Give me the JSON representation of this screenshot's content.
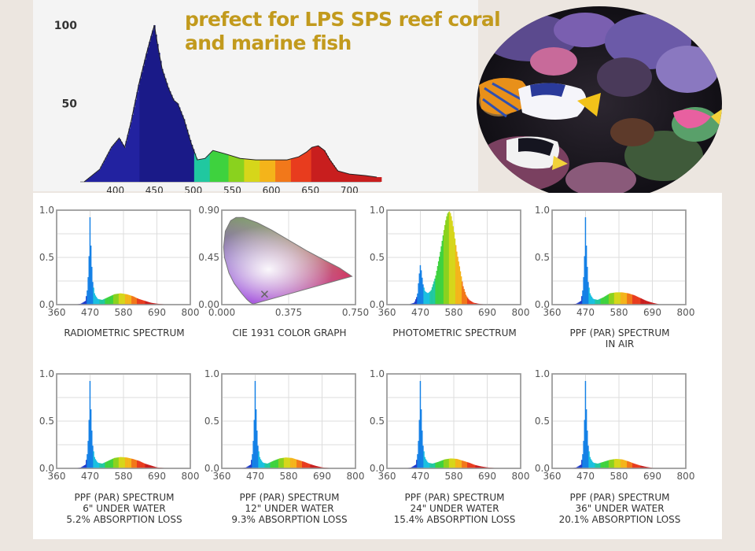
{
  "headline": {
    "line1": "prefect for LPS SPS reef coral",
    "line2": "and marine fish"
  },
  "chart_data": [
    {
      "id": "main",
      "type": "area",
      "x_ticks": [
        400,
        450,
        500,
        550,
        600,
        650,
        700
      ],
      "y_ticks": [
        50,
        100
      ],
      "xlim": [
        355,
        740
      ],
      "ylim": [
        0,
        100
      ],
      "x": [
        360,
        380,
        395,
        405,
        412,
        420,
        430,
        440,
        447,
        450,
        455,
        460,
        468,
        475,
        480,
        488,
        497,
        505,
        515,
        525,
        540,
        560,
        580,
        600,
        620,
        635,
        645,
        652,
        660,
        668,
        675,
        685,
        700,
        720,
        735
      ],
      "y": [
        0,
        8,
        22,
        28,
        22,
        38,
        62,
        82,
        95,
        100,
        85,
        72,
        60,
        52,
        50,
        40,
        25,
        14,
        15,
        20,
        18,
        15,
        14,
        14,
        14,
        16,
        19,
        22,
        23,
        20,
        14,
        7,
        5,
        4,
        3
      ]
    },
    {
      "id": "radiometric",
      "type": "area",
      "x_ticks": [
        360,
        470,
        580,
        690,
        800
      ],
      "y_ticks": [
        0.0,
        0.5,
        1.0
      ],
      "ylim": [
        0,
        1
      ],
      "x": [
        360,
        420,
        440,
        455,
        462,
        467,
        470,
        473,
        478,
        485,
        495,
        510,
        530,
        550,
        570,
        590,
        610,
        630,
        650,
        670,
        690,
        710,
        730,
        760,
        800
      ],
      "y": [
        0,
        0,
        0.01,
        0.04,
        0.18,
        0.55,
        1.0,
        0.55,
        0.25,
        0.11,
        0.06,
        0.05,
        0.08,
        0.11,
        0.12,
        0.11,
        0.09,
        0.06,
        0.04,
        0.02,
        0.01,
        0.005,
        0,
        0,
        0
      ]
    },
    {
      "id": "cie",
      "type": "scatter",
      "x_ticks": [
        0.0,
        0.375,
        0.75
      ],
      "y_ticks": [
        0.0,
        0.45,
        0.9
      ],
      "xlim": [
        0,
        0.75
      ],
      "ylim": [
        0,
        0.9
      ],
      "x": [
        0.24
      ],
      "y": [
        0.1
      ]
    },
    {
      "id": "photometric",
      "type": "area",
      "x_ticks": [
        360,
        470,
        580,
        690,
        800
      ],
      "y_ticks": [
        0.0,
        0.5,
        1.0
      ],
      "ylim": [
        0,
        1
      ],
      "x": [
        360,
        430,
        450,
        460,
        465,
        468,
        470,
        473,
        478,
        485,
        495,
        505,
        520,
        535,
        548,
        555,
        560,
        565,
        570,
        575,
        580,
        590,
        600,
        610,
        620,
        630,
        645,
        660,
        690,
        800
      ],
      "y": [
        0,
        0,
        0.02,
        0.1,
        0.28,
        0.38,
        0.43,
        0.35,
        0.22,
        0.14,
        0.12,
        0.15,
        0.3,
        0.55,
        0.8,
        0.92,
        0.97,
        0.99,
        0.96,
        0.88,
        0.78,
        0.55,
        0.38,
        0.2,
        0.1,
        0.05,
        0.02,
        0.01,
        0,
        0
      ]
    },
    {
      "id": "ppf_air",
      "type": "area",
      "x_ticks": [
        360,
        470,
        580,
        690,
        800
      ],
      "y_ticks": [
        0.0,
        0.5,
        1.0
      ],
      "ylim": [
        0,
        1
      ],
      "x": [
        360,
        420,
        440,
        455,
        462,
        467,
        470,
        473,
        478,
        485,
        495,
        510,
        530,
        550,
        570,
        590,
        610,
        630,
        650,
        670,
        690,
        710,
        730,
        760,
        800
      ],
      "y": [
        0,
        0,
        0.01,
        0.04,
        0.18,
        0.55,
        1.0,
        0.55,
        0.25,
        0.11,
        0.06,
        0.05,
        0.08,
        0.12,
        0.13,
        0.13,
        0.12,
        0.1,
        0.07,
        0.04,
        0.02,
        0.005,
        0,
        0,
        0
      ]
    },
    {
      "id": "ppf_6",
      "type": "area",
      "x_ticks": [
        360,
        470,
        580,
        690,
        800
      ],
      "y_ticks": [
        0.0,
        0.5,
        1.0
      ],
      "ylim": [
        0,
        1
      ],
      "x": [
        360,
        420,
        440,
        455,
        462,
        467,
        470,
        473,
        478,
        485,
        495,
        510,
        530,
        550,
        570,
        590,
        610,
        630,
        650,
        670,
        690,
        710,
        730,
        760,
        800
      ],
      "y": [
        0,
        0,
        0.01,
        0.04,
        0.18,
        0.55,
        1.0,
        0.55,
        0.25,
        0.11,
        0.06,
        0.05,
        0.08,
        0.11,
        0.12,
        0.115,
        0.1,
        0.08,
        0.05,
        0.03,
        0.01,
        0.005,
        0,
        0,
        0
      ]
    },
    {
      "id": "ppf_12",
      "type": "area",
      "x_ticks": [
        360,
        470,
        580,
        690,
        800
      ],
      "y_ticks": [
        0.0,
        0.5,
        1.0
      ],
      "ylim": [
        0,
        1
      ],
      "x": [
        360,
        420,
        440,
        455,
        462,
        467,
        470,
        473,
        478,
        485,
        495,
        510,
        530,
        550,
        570,
        590,
        610,
        630,
        650,
        670,
        690,
        710,
        730,
        760,
        800
      ],
      "y": [
        0,
        0,
        0.01,
        0.04,
        0.18,
        0.55,
        1.0,
        0.55,
        0.25,
        0.11,
        0.06,
        0.05,
        0.08,
        0.105,
        0.115,
        0.11,
        0.09,
        0.07,
        0.045,
        0.025,
        0.01,
        0.005,
        0,
        0,
        0
      ]
    },
    {
      "id": "ppf_24",
      "type": "area",
      "x_ticks": [
        360,
        470,
        580,
        690,
        800
      ],
      "y_ticks": [
        0.0,
        0.5,
        1.0
      ],
      "ylim": [
        0,
        1
      ],
      "x": [
        360,
        420,
        440,
        455,
        462,
        467,
        470,
        473,
        478,
        485,
        495,
        510,
        530,
        550,
        570,
        590,
        610,
        630,
        650,
        670,
        690,
        710,
        730,
        760,
        800
      ],
      "y": [
        0,
        0,
        0.01,
        0.04,
        0.18,
        0.55,
        1.0,
        0.55,
        0.25,
        0.11,
        0.06,
        0.05,
        0.07,
        0.095,
        0.105,
        0.1,
        0.08,
        0.06,
        0.035,
        0.02,
        0.01,
        0.005,
        0,
        0,
        0
      ]
    },
    {
      "id": "ppf_36",
      "type": "area",
      "x_ticks": [
        360,
        470,
        580,
        690,
        800
      ],
      "y_ticks": [
        0.0,
        0.5,
        1.0
      ],
      "ylim": [
        0,
        1
      ],
      "x": [
        360,
        420,
        440,
        455,
        462,
        467,
        470,
        473,
        478,
        485,
        495,
        510,
        530,
        550,
        570,
        590,
        610,
        630,
        650,
        670,
        690,
        710,
        730,
        760,
        800
      ],
      "y": [
        0,
        0,
        0.01,
        0.04,
        0.18,
        0.55,
        1.0,
        0.55,
        0.25,
        0.11,
        0.06,
        0.05,
        0.07,
        0.09,
        0.1,
        0.095,
        0.075,
        0.05,
        0.03,
        0.015,
        0.005,
        0,
        0,
        0,
        0
      ]
    }
  ],
  "captions": [
    [
      "RADIOMETRIC SPECTRUM"
    ],
    [
      "CIE 1931 COLOR GRAPH"
    ],
    [
      "PHOTOMETRIC SPECTRUM"
    ],
    [
      "PPF (PAR) SPECTRUM",
      "IN AIR"
    ],
    [
      "PPF (PAR) SPECTRUM",
      "6\" UNDER WATER",
      "5.2% ABSORPTION LOSS"
    ],
    [
      "PPF (PAR) SPECTRUM",
      "12\" UNDER WATER",
      "9.3% ABSORPTION LOSS"
    ],
    [
      "PPF (PAR) SPECTRUM",
      "24\" UNDER WATER",
      "15.4% ABSORPTION LOSS"
    ],
    [
      "PPF (PAR) SPECTRUM",
      "36\" UNDER WATER",
      "20.1% ABSORPTION LOSS"
    ]
  ],
  "colors": {
    "headline": "#c29a1d",
    "main_fill": "#1a1a88",
    "axis_text": "#555555"
  }
}
